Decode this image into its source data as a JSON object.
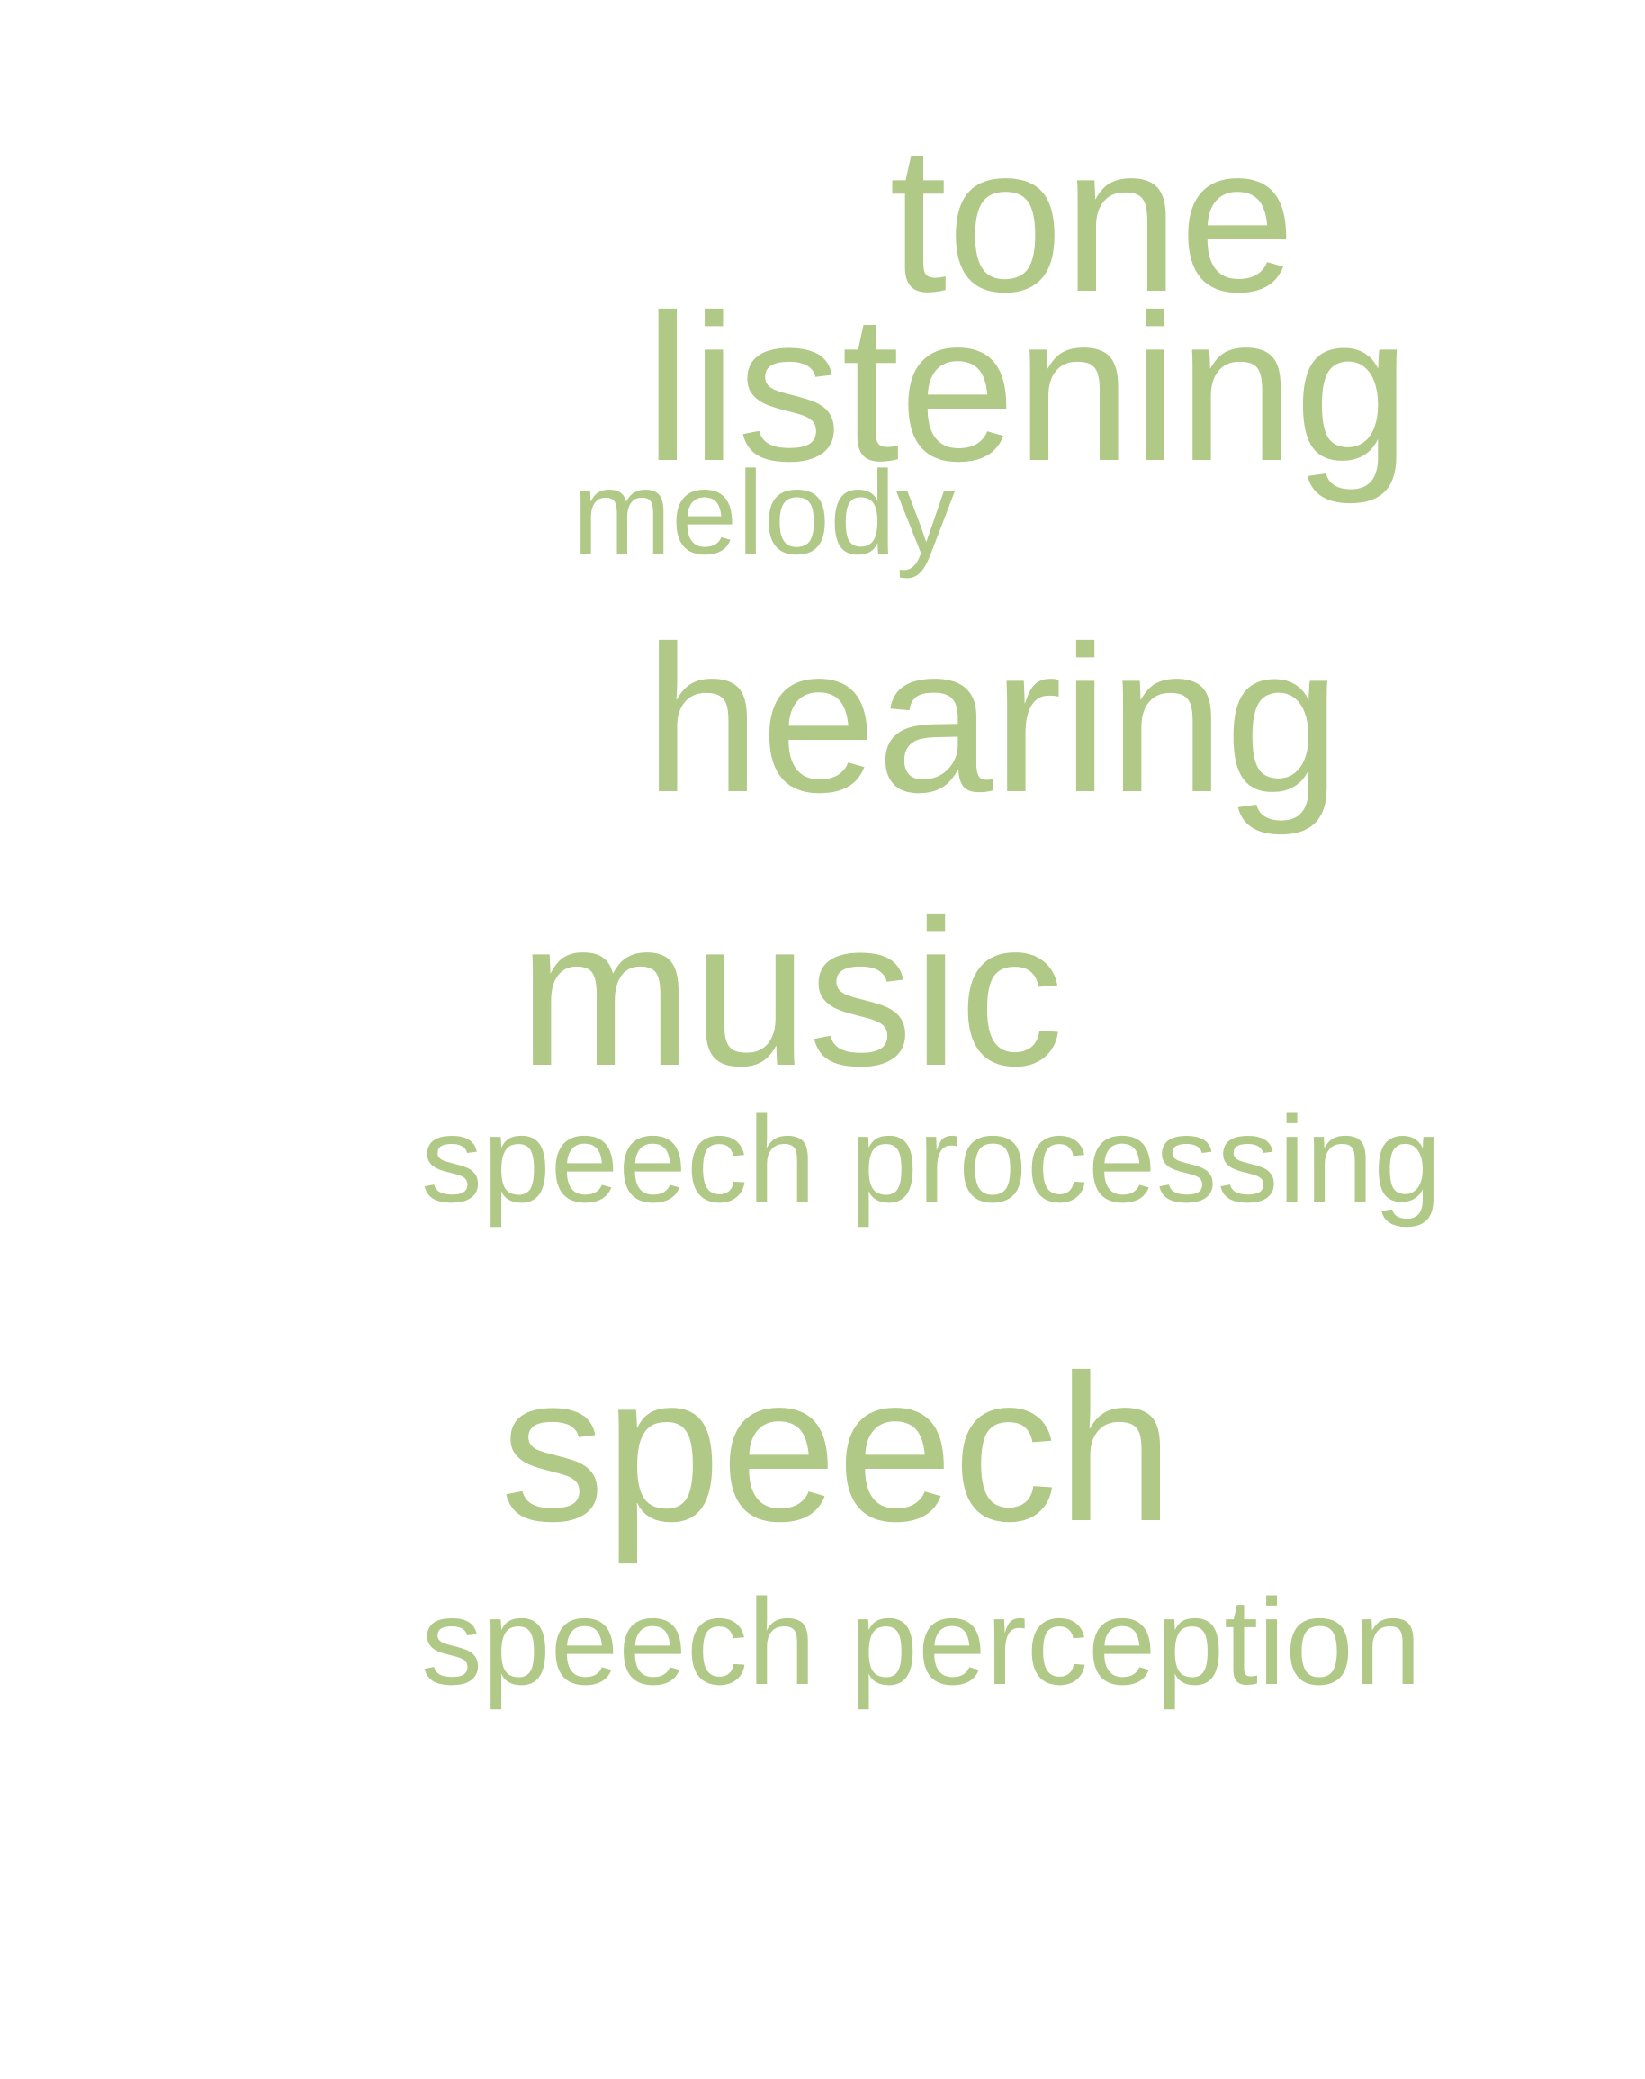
{
  "word_color": "#b0c987",
  "background_color": "#ffffff",
  "words": {
    "tone": "tone",
    "listening": "listening",
    "melody": "melody",
    "hearing": "hearing",
    "music": "music",
    "speech_processing": "speech processing",
    "speech": "speech",
    "speech_perception": "speech perception"
  }
}
